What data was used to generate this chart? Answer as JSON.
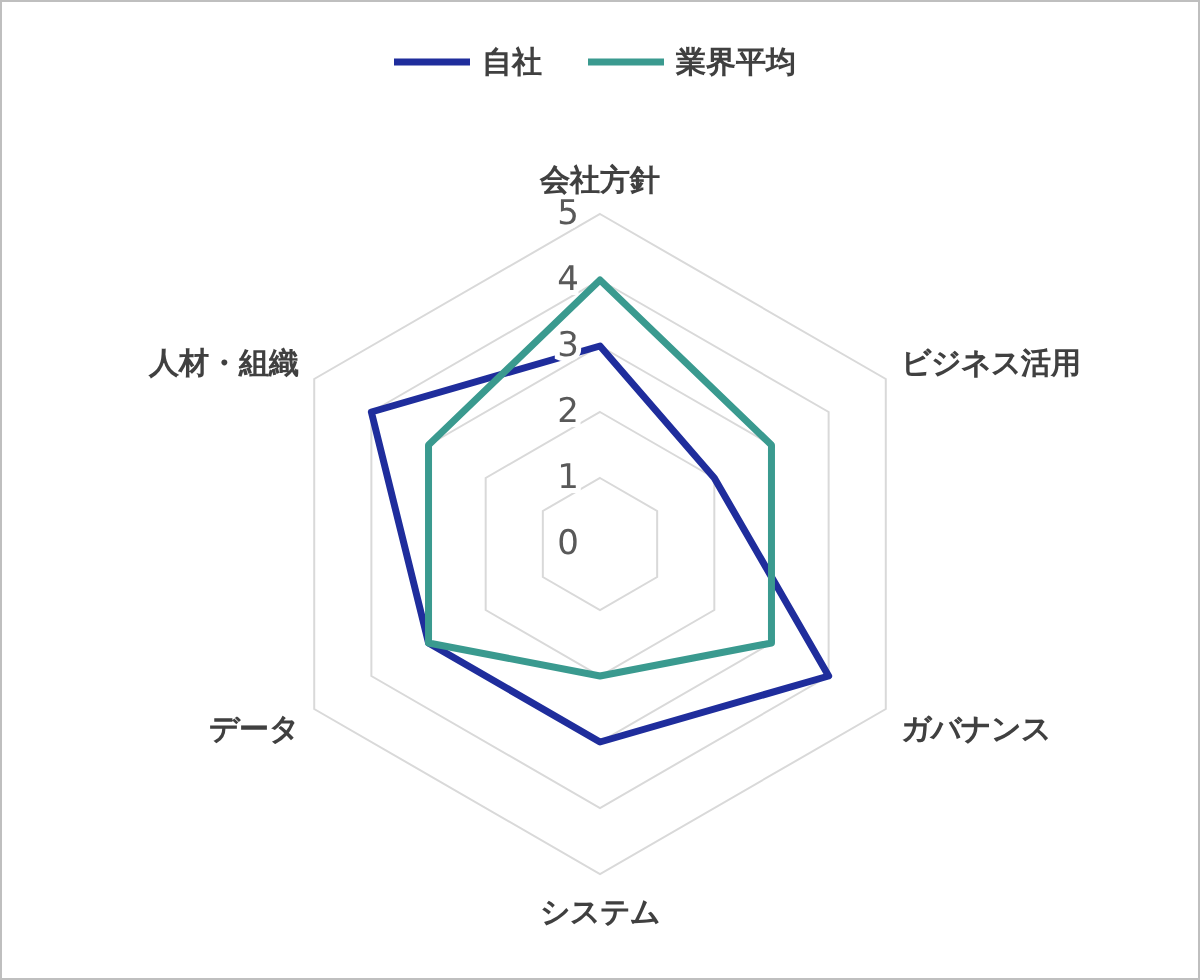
{
  "chart_data": {
    "type": "radar",
    "categories": [
      "会社方針",
      "ビジネス活用",
      "ガバナンス",
      "システム",
      "データ",
      "人材・組織"
    ],
    "series": [
      {
        "name": "自社",
        "color": "#1f2d9c",
        "values": [
          3,
          2,
          4,
          3,
          3,
          4
        ]
      },
      {
        "name": "業界平均",
        "color": "#3a9a8f",
        "values": [
          4,
          3,
          3,
          2,
          3,
          3
        ]
      }
    ],
    "ylim": [
      0,
      5
    ],
    "yticks": [
      0,
      1,
      2,
      3,
      4,
      5
    ],
    "grid": true,
    "legend": "top"
  }
}
